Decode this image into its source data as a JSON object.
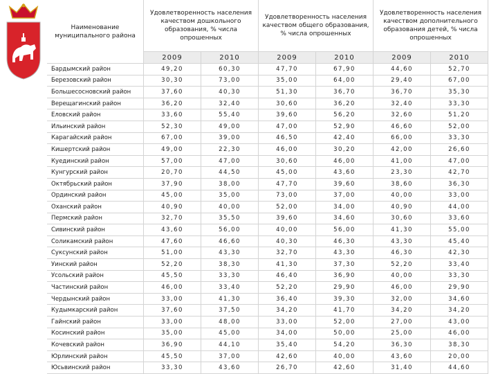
{
  "table": {
    "header": {
      "name": "Наименование муниципального района",
      "groups": [
        "Удовлетворенность населения качеством дошкольного образования, % числа опрошенных",
        "Удовлетворенность населения качеством общего образования, % числа опрошенных",
        "Удовлетворенность населения качеством дополнительного образования детей, % числа опрошенных"
      ],
      "years": [
        "2009",
        "2010",
        "2009",
        "2010",
        "2009",
        "2010"
      ]
    },
    "rows": [
      {
        "name": "Бардымский район",
        "values": [
          "49,20",
          "60,30",
          "47,70",
          "67,90",
          "44,60",
          "52,70"
        ]
      },
      {
        "name": "Березовский район",
        "values": [
          "30,30",
          "73,00",
          "35,00",
          "64,00",
          "29,40",
          "67,00"
        ]
      },
      {
        "name": "Большесосновский район",
        "values": [
          "37,60",
          "40,30",
          "51,30",
          "36,70",
          "36,70",
          "35,30"
        ]
      },
      {
        "name": "Верещагинский район",
        "values": [
          "36,20",
          "32,40",
          "30,60",
          "36,20",
          "32,40",
          "33,30"
        ]
      },
      {
        "name": "Еловский район",
        "values": [
          "33,60",
          "55,40",
          "39,60",
          "56,20",
          "32,60",
          "51,20"
        ]
      },
      {
        "name": "Ильинский район",
        "values": [
          "52,30",
          "49,00",
          "47,00",
          "52,90",
          "46,60",
          "52,00"
        ]
      },
      {
        "name": "Карагайский район",
        "values": [
          "67,00",
          "39,00",
          "46,50",
          "42,40",
          "66,00",
          "33,30"
        ]
      },
      {
        "name": "Кишертский район",
        "values": [
          "49,00",
          "22,30",
          "46,00",
          "30,20",
          "42,00",
          "26,60"
        ]
      },
      {
        "name": "Куединский район",
        "values": [
          "57,00",
          "47,00",
          "30,60",
          "46,00",
          "41,00",
          "47,00"
        ]
      },
      {
        "name": "Кунгурский район",
        "values": [
          "20,70",
          "44,50",
          "45,00",
          "43,60",
          "23,30",
          "42,70"
        ]
      },
      {
        "name": "Октябрьский район",
        "values": [
          "37,90",
          "38,00",
          "47,70",
          "39,60",
          "38,60",
          "36,30"
        ]
      },
      {
        "name": "Ординский район",
        "values": [
          "45,00",
          "35,00",
          "73,00",
          "37,00",
          "40,00",
          "33,00"
        ]
      },
      {
        "name": "Оханский район",
        "values": [
          "40,90",
          "40,00",
          "52,00",
          "34,00",
          "40,90",
          "44,00"
        ]
      },
      {
        "name": "Пермский район",
        "values": [
          "32,70",
          "35,50",
          "39,60",
          "34,60",
          "30,60",
          "33,60"
        ]
      },
      {
        "name": "Сивинский район",
        "values": [
          "43,60",
          "56,00",
          "40,00",
          "56,00",
          "41,30",
          "55,00"
        ]
      },
      {
        "name": "Соликамский район",
        "values": [
          "47,60",
          "46,60",
          "40,30",
          "46,30",
          "43,30",
          "45,40"
        ]
      },
      {
        "name": "Суксунский район",
        "values": [
          "51,00",
          "43,30",
          "32,70",
          "43,30",
          "46,30",
          "42,30"
        ]
      },
      {
        "name": "Уинский район",
        "values": [
          "52,20",
          "38,30",
          "41,30",
          "37,30",
          "52,20",
          "33,40"
        ]
      },
      {
        "name": "Усольский район",
        "values": [
          "45,50",
          "33,30",
          "46,40",
          "36,90",
          "40,00",
          "33,30"
        ]
      },
      {
        "name": "Частинский район",
        "values": [
          "46,00",
          "33,40",
          "52,20",
          "29,90",
          "46,00",
          "29,90"
        ]
      },
      {
        "name": "Чердынский район",
        "values": [
          "33,00",
          "41,30",
          "36,40",
          "39,30",
          "32,00",
          "34,60"
        ]
      },
      {
        "name": "Кудымкарский район",
        "values": [
          "37,60",
          "37,50",
          "34,20",
          "41,70",
          "34,20",
          "34,20"
        ]
      },
      {
        "name": "Гайнский район",
        "values": [
          "33,00",
          "48,00",
          "33,00",
          "52,00",
          "27,00",
          "43,00"
        ]
      },
      {
        "name": "Косинский район",
        "values": [
          "35,00",
          "45,00",
          "34,00",
          "50,00",
          "25,00",
          "46,00"
        ]
      },
      {
        "name": "Кочевский район",
        "values": [
          "36,90",
          "44,10",
          "35,40",
          "54,20",
          "36,30",
          "38,30"
        ]
      },
      {
        "name": "Юрлинский район",
        "values": [
          "45,50",
          "37,00",
          "42,60",
          "40,00",
          "43,60",
          "20,00"
        ]
      },
      {
        "name": "Юсьвинский район",
        "values": [
          "33,30",
          "43,60",
          "26,70",
          "42,60",
          "31,40",
          "44,60"
        ]
      }
    ]
  }
}
